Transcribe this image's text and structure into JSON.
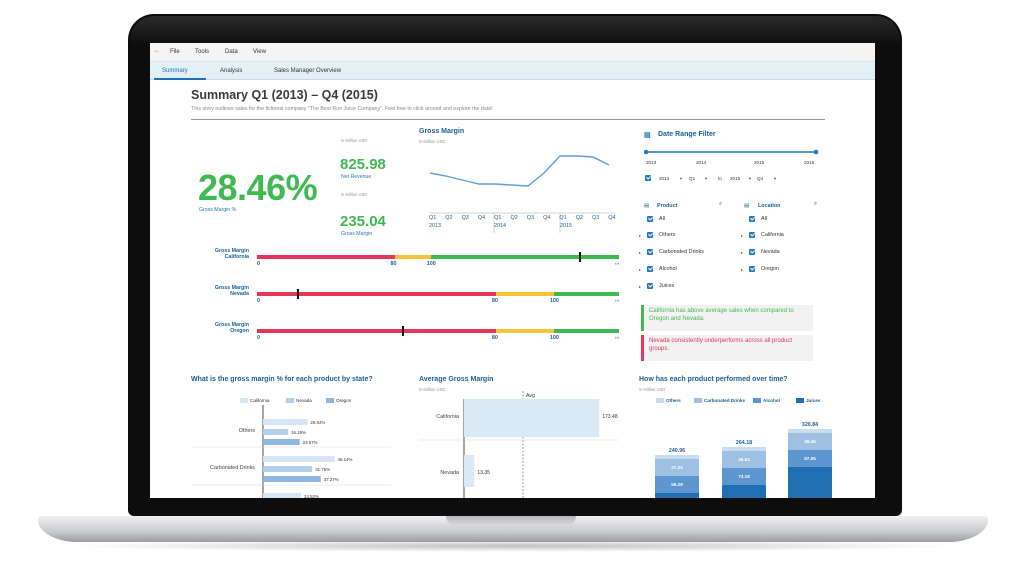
{
  "menu": {
    "back": "←",
    "items": [
      "File",
      "Tools",
      "Data",
      "View"
    ]
  },
  "tabs": [
    {
      "label": "Summary",
      "active": true
    },
    {
      "label": "Analysis",
      "active": false
    },
    {
      "label": "Sales Manager Overview",
      "active": false
    }
  ],
  "page": {
    "title": "Summary Q1 (2013) – Q4 (2015)",
    "subtitle": "This story outlines sales for the fictional company \"The Best Run Juice Company\". Feel free to click around and explore the data!"
  },
  "kpis": {
    "gross_margin_pct": {
      "value": "28.46%",
      "label": "Gross Margin %"
    },
    "net_revenue": {
      "unit": "in Million USD",
      "value": "825.98",
      "label": "Net Revenue"
    },
    "gross_margin": {
      "unit": "in Million USD",
      "value": "235.04",
      "label": "Gross Margin"
    }
  },
  "gross_margin_trend": {
    "title": "Gross Margin",
    "unit": "in Million USD",
    "quarters": [
      "Q1",
      "Q2",
      "Q3",
      "Q4",
      "Q1",
      "Q2",
      "Q3",
      "Q4",
      "Q1",
      "Q2",
      "Q3",
      "Q4"
    ],
    "years": [
      "2013",
      "2014",
      "2015"
    ],
    "line_color": "#5c9fd6"
  },
  "bullets": [
    {
      "label_line1": "Gross Margin",
      "label_line2": "California",
      "ticks": [
        "0",
        "80",
        "100"
      ],
      "marker_pct": 0.89,
      "more": "›››"
    },
    {
      "label_line1": "Gross Margin",
      "label_line2": "Nevada",
      "ticks": [
        "0",
        "80",
        "100"
      ],
      "marker_pct": 0.11,
      "more": "›››"
    },
    {
      "label_line1": "Gross Margin",
      "label_line2": "Oregon",
      "ticks": [
        "0",
        "80",
        "100"
      ],
      "marker_pct": 0.4,
      "more": "›››"
    }
  ],
  "colors": {
    "green": "#3fba52",
    "red": "#e6355b",
    "yellow": "#f6c43a",
    "brand_blue": "#1a5f94",
    "light_blue": "#e4f0f8"
  },
  "date_filter": {
    "title": "Date Range Filter",
    "years": [
      "2013",
      "2014",
      "2015",
      "2016"
    ],
    "from_year": "2013",
    "from_q": "Q1",
    "to_label": "to",
    "to_year": "2015",
    "to_q": "Q4",
    "dropdown_arrow": "▼"
  },
  "product_filter": {
    "title": "Product",
    "items": [
      "All",
      "Others",
      "Carbonated Drinks",
      "Alcohol",
      "Juices"
    ]
  },
  "location_filter": {
    "title": "Location",
    "items": [
      "All",
      "California",
      "Nevada",
      "Oregon"
    ]
  },
  "notes": [
    "California has above average sales when compared to Oregon and Nevada.",
    "Nevada consistently underperforms across all product groups."
  ],
  "gm_by_product": {
    "title": "What is the gross margin % for each product by state?",
    "legend": [
      "California",
      "Nevada",
      "Oregon"
    ],
    "colors": [
      "#d6e6f4",
      "#b3cfea",
      "#8fb7df"
    ],
    "groups": [
      {
        "name": "Others",
        "values": [
          28.64,
          16.19,
          23.67
        ],
        "labels": [
          "28.64%",
          "16.19%",
          "23.67%"
        ]
      },
      {
        "name": "Carbonated Drinks",
        "values": [
          46.14,
          31.76,
          37.27
        ],
        "labels": [
          "46.14%",
          "31.76%",
          "37.27%"
        ]
      },
      {
        "name": "",
        "values": [
          24.52
        ],
        "labels": [
          "24.52%"
        ]
      }
    ]
  },
  "avg_gm": {
    "title": "Average Gross Margin",
    "unit": "in Million USD",
    "avg_label": "Avg",
    "rows": [
      {
        "state": "California",
        "value": 173.48,
        "label": "173.48"
      },
      {
        "state": "Nevada",
        "value": 13.35,
        "label": "13.35"
      }
    ]
  },
  "product_perf": {
    "title": "How has each product performed over time?",
    "unit": "in Million USD",
    "legend": [
      "Others",
      "Carbonated Drinks",
      "Alcohol",
      "Juices"
    ],
    "colors": [
      "#c9ddf0",
      "#9dc0e3",
      "#5e97cf",
      "#1f6fb2"
    ],
    "totals": [
      "240.96",
      "264.18",
      "320.84"
    ],
    "segment_labels": [
      [
        "37.25",
        "58.29"
      ],
      [
        "46.54",
        "73.18"
      ],
      [
        "49.45",
        "57.05"
      ]
    ]
  },
  "chart_data": [
    {
      "type": "bar",
      "title": "What is the gross margin % for each product by state?",
      "categories": [
        "Others",
        "Carbonated Drinks"
      ],
      "series": [
        {
          "name": "California",
          "values": [
            28.64,
            46.14
          ]
        },
        {
          "name": "Nevada",
          "values": [
            16.19,
            31.76
          ]
        },
        {
          "name": "Oregon",
          "values": [
            23.67,
            37.27
          ]
        }
      ]
    },
    {
      "type": "bar",
      "title": "Average Gross Margin",
      "categories": [
        "California",
        "Nevada"
      ],
      "values": [
        173.48,
        13.35
      ]
    },
    {
      "type": "bar",
      "title": "How has each product performed over time?",
      "totals": [
        240.96,
        264.18,
        320.84
      ]
    }
  ]
}
